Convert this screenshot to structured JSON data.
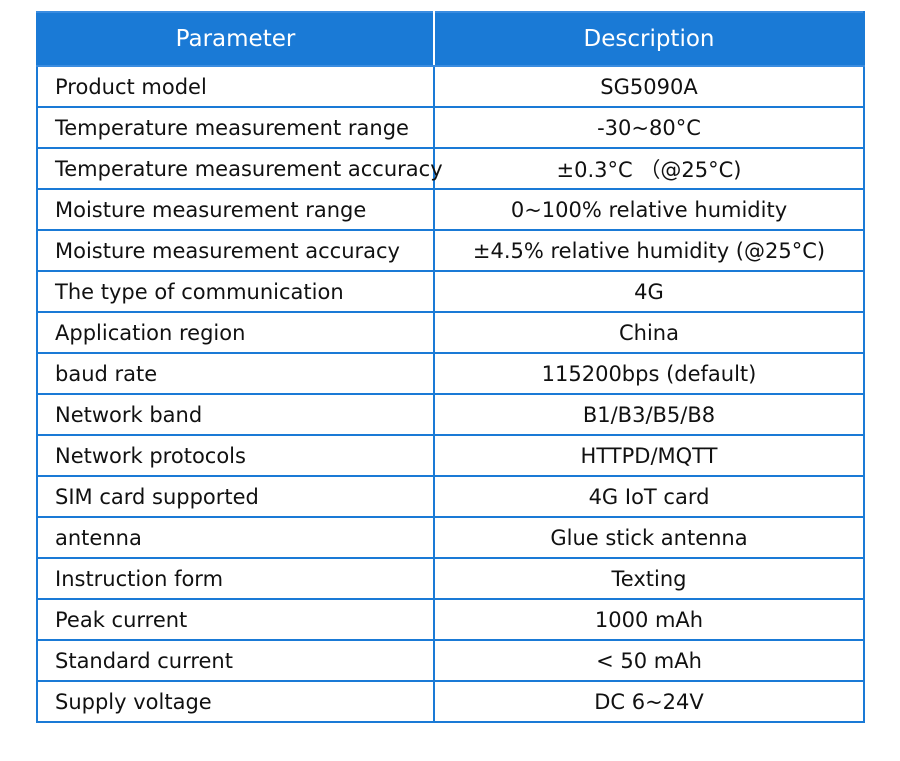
{
  "table": {
    "headers": {
      "parameter": "Parameter",
      "description": "Description"
    },
    "rows": [
      {
        "parameter": "Product model",
        "description": "SG5090A"
      },
      {
        "parameter": "Temperature measurement range",
        "description": "-30~80°C"
      },
      {
        "parameter": "Temperature measurement accuracy",
        "description": "±0.3°C （@25°C)"
      },
      {
        "parameter": "Moisture measurement range",
        "description": "0~100% relative humidity"
      },
      {
        "parameter": "Moisture measurement accuracy",
        "description": "±4.5% relative humidity (@25°C)"
      },
      {
        "parameter": "The type of communication",
        "description": "4G"
      },
      {
        "parameter": "Application region",
        "description": "China"
      },
      {
        "parameter": "baud rate",
        "description": "115200bps (default)"
      },
      {
        "parameter": "Network band",
        "description": "B1/B3/B5/B8"
      },
      {
        "parameter": "Network protocols",
        "description": "HTTPD/MQTT"
      },
      {
        "parameter": "SIM card supported",
        "description": "4G IoT card"
      },
      {
        "parameter": "antenna",
        "description": "Glue stick antenna"
      },
      {
        "parameter": "Instruction form",
        "description": "Texting"
      },
      {
        "parameter": "Peak current",
        "description": "1000 mAh"
      },
      {
        "parameter": "Standard current",
        "description": "< 50 mAh"
      },
      {
        "parameter": "Supply voltage",
        "description": "DC 6~24V"
      }
    ]
  },
  "colors": {
    "header_background": "#1a7ad6",
    "border": "#1a7ad6",
    "header_text": "#ffffff",
    "body_text": "#111111"
  }
}
